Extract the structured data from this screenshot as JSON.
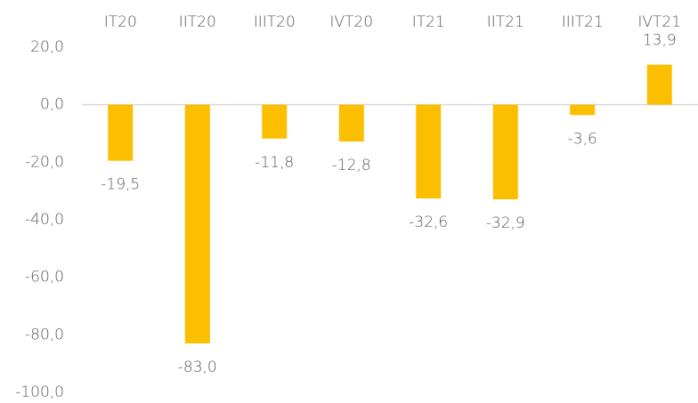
{
  "chart_data": {
    "type": "bar",
    "categories": [
      "IT20",
      "IIT20",
      "IIIT20",
      "IVT20",
      "IT21",
      "IIT21",
      "IIIT21",
      "IVT21"
    ],
    "values": [
      -19.5,
      -83.0,
      -11.8,
      -12.8,
      -32.6,
      -32.9,
      -3.6,
      13.9
    ],
    "value_labels": [
      "-19,5",
      "-83,0",
      "-11,8",
      "-12,8",
      "-32,6",
      "-32,9",
      "-3,6",
      "13,9"
    ],
    "color": "#fbbf00",
    "ylim": [
      -100,
      20
    ],
    "yticks": [
      {
        "value": 20,
        "label": "20,0"
      },
      {
        "value": 0,
        "label": "0,0"
      },
      {
        "value": -20,
        "label": "-20,0"
      },
      {
        "value": -40,
        "label": "-40,0"
      },
      {
        "value": -60,
        "label": "-60,0"
      },
      {
        "value": -80,
        "label": "-80,0"
      },
      {
        "value": -100,
        "label": "-100,0"
      }
    ],
    "grid": false
  }
}
